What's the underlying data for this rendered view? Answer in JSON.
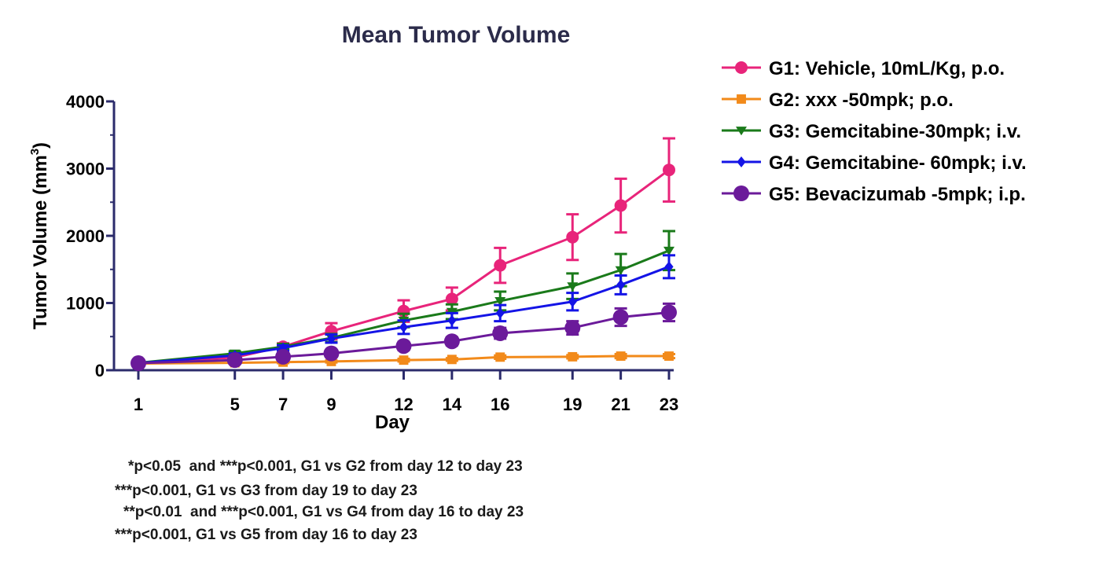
{
  "chart_data": {
    "type": "line",
    "title": "Mean Tumor Volume",
    "xlabel": "Day",
    "ylabel_main": "Tumor Volume (mm",
    "ylabel_sup": "3",
    "ylabel_end": ")",
    "x": [
      1,
      5,
      7,
      9,
      12,
      14,
      16,
      19,
      21,
      23
    ],
    "x_tick_labels": [
      "1",
      "5",
      "7",
      "9",
      "12",
      "14",
      "16",
      "19",
      "21",
      "23"
    ],
    "ylim": [
      0,
      4000
    ],
    "y_ticks": [
      0,
      1000,
      2000,
      3000,
      4000
    ],
    "y_tick_labels": [
      "0",
      "1000",
      "2000",
      "3000",
      "4000"
    ],
    "grid": false,
    "legend_position": "top-right",
    "series": [
      {
        "name": "G1: Vehicle, 10mL/Kg, p.o.",
        "color": "#e8247a",
        "marker": "circle",
        "values": [
          110,
          190,
          350,
          580,
          880,
          1060,
          1560,
          1980,
          2450,
          2980
        ],
        "errors": [
          20,
          30,
          50,
          120,
          160,
          170,
          260,
          340,
          400,
          470
        ]
      },
      {
        "name": "G2: xxx -50mpk; p.o.",
        "color": "#f28a1a",
        "marker": "square",
        "values": [
          100,
          110,
          120,
          130,
          150,
          160,
          195,
          200,
          210,
          210
        ],
        "errors": [
          10,
          10,
          15,
          15,
          20,
          20,
          25,
          25,
          30,
          30
        ]
      },
      {
        "name": "G3: Gemcitabine-30mpk; i.v.",
        "color": "#1a7a1a",
        "marker": "triangle-down",
        "values": [
          110,
          250,
          350,
          480,
          740,
          870,
          1030,
          1250,
          1490,
          1780
        ],
        "errors": [
          15,
          30,
          40,
          60,
          100,
          110,
          140,
          190,
          240,
          290
        ]
      },
      {
        "name": "G4: Gemcitabine- 60mpk; i.v.",
        "color": "#1414e6",
        "marker": "diamond",
        "values": [
          105,
          220,
          330,
          470,
          640,
          740,
          850,
          1020,
          1270,
          1540
        ],
        "errors": [
          15,
          30,
          40,
          60,
          100,
          110,
          120,
          130,
          140,
          170
        ]
      },
      {
        "name": "G5: Bevacizumab -5mpk; i.p.",
        "color": "#6b1a9a",
        "marker": "circle",
        "values": [
          105,
          150,
          200,
          250,
          360,
          430,
          550,
          630,
          790,
          860
        ],
        "errors": [
          15,
          20,
          30,
          40,
          60,
          60,
          80,
          100,
          130,
          130
        ]
      }
    ],
    "annotations": [
      "*p<0.05  and ***p<0.001, G1 vs G2 from day 12 to day 23",
      "***p<0.001, G1 vs G3 from day 19 to day 23",
      "**p<0.01  and ***p<0.001, G1 vs G4 from day 16 to day 23",
      "***p<0.001, G1 vs G5 from day 16 to day 23"
    ]
  }
}
